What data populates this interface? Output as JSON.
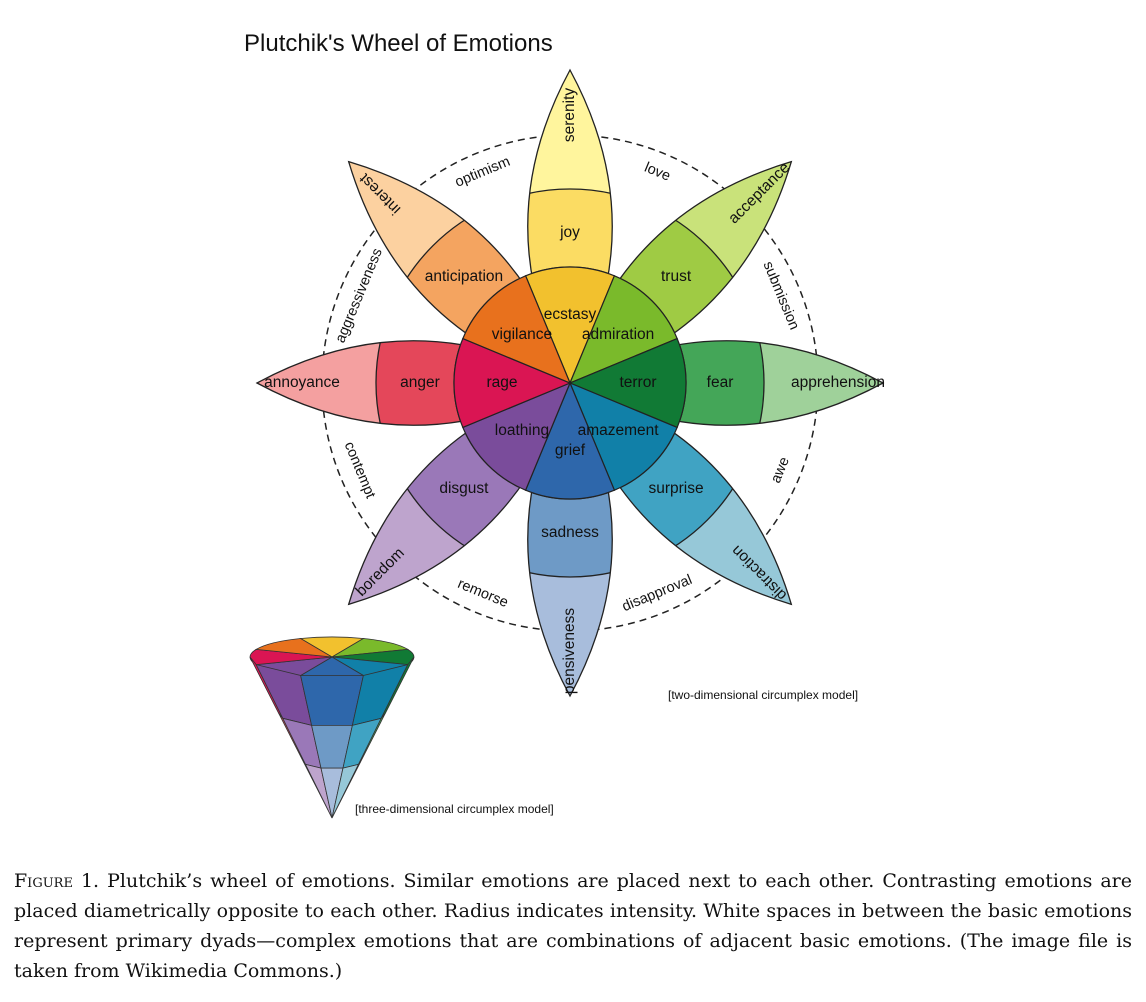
{
  "title": "Plutchik's Wheel of Emotions",
  "petals": [
    {
      "id": "yellow",
      "angle": 0,
      "colors": [
        "#fff59d",
        "#fbdc63",
        "#f2c12e"
      ],
      "labels": [
        "serenity",
        "joy",
        "ecstasy"
      ]
    },
    {
      "id": "green",
      "angle": 45,
      "colors": [
        "#c9e27a",
        "#9fcb44",
        "#7aba2b"
      ],
      "labels": [
        "acceptance",
        "trust",
        "admiration"
      ]
    },
    {
      "id": "darkgreen",
      "angle": 90,
      "colors": [
        "#9fd19a",
        "#44a658",
        "#117a35"
      ],
      "labels": [
        "apprehension",
        "fear",
        "terror"
      ]
    },
    {
      "id": "teal",
      "angle": 135,
      "colors": [
        "#96c8d8",
        "#40a3c3",
        "#1180a8"
      ],
      "labels": [
        "distraction",
        "surprise",
        "amazement"
      ]
    },
    {
      "id": "blue",
      "angle": 180,
      "colors": [
        "#a8bddc",
        "#6e9ac6",
        "#2e67ab"
      ],
      "labels": [
        "pensiveness",
        "sadness",
        "grief"
      ]
    },
    {
      "id": "purple",
      "angle": 225,
      "colors": [
        "#bea4cd",
        "#9a78b8",
        "#7a4c9b"
      ],
      "labels": [
        "boredom",
        "disgust",
        "loathing"
      ]
    },
    {
      "id": "red",
      "angle": 270,
      "colors": [
        "#f4a0a0",
        "#e4475a",
        "#da1553"
      ],
      "labels": [
        "annoyance",
        "anger",
        "rage"
      ]
    },
    {
      "id": "orange",
      "angle": 315,
      "colors": [
        "#fcd1a0",
        "#f4a460",
        "#e8711d"
      ],
      "labels": [
        "interest",
        "anticipation",
        "vigilance"
      ]
    }
  ],
  "dyads": [
    {
      "angle": 22.5,
      "label": "love"
    },
    {
      "angle": 67.5,
      "label": "submission"
    },
    {
      "angle": 112.5,
      "label": "awe"
    },
    {
      "angle": 157.5,
      "label": "disapproval"
    },
    {
      "angle": 202.5,
      "label": "remorse"
    },
    {
      "angle": 247.5,
      "label": "contempt"
    },
    {
      "angle": 292.5,
      "label": "aggressiveness"
    },
    {
      "angle": 337.5,
      "label": "optimism"
    }
  ],
  "cone_colors": {
    "top": [
      "#f2c12e",
      "#7aba2b",
      "#117a35",
      "#1180a8",
      "#2e67ab",
      "#7a4c9b",
      "#da1553",
      "#e8711d"
    ]
  },
  "two_d_label": "[two-dimensional circumplex model]",
  "three_d_label": "[three-dimensional circumplex model]",
  "caption": {
    "lead": "Figure 1.",
    "text": "Plutchik’s wheel of emotions. Similar emotions are placed next to each other. Contrasting emotions are placed diametrically opposite to each other. Radius indicates intensity. White spaces in between the basic emotions represent primary dyads—complex emotions that are combinations of adjacent basic emotions. (The image file is taken from Wikimedia Commons.)"
  }
}
